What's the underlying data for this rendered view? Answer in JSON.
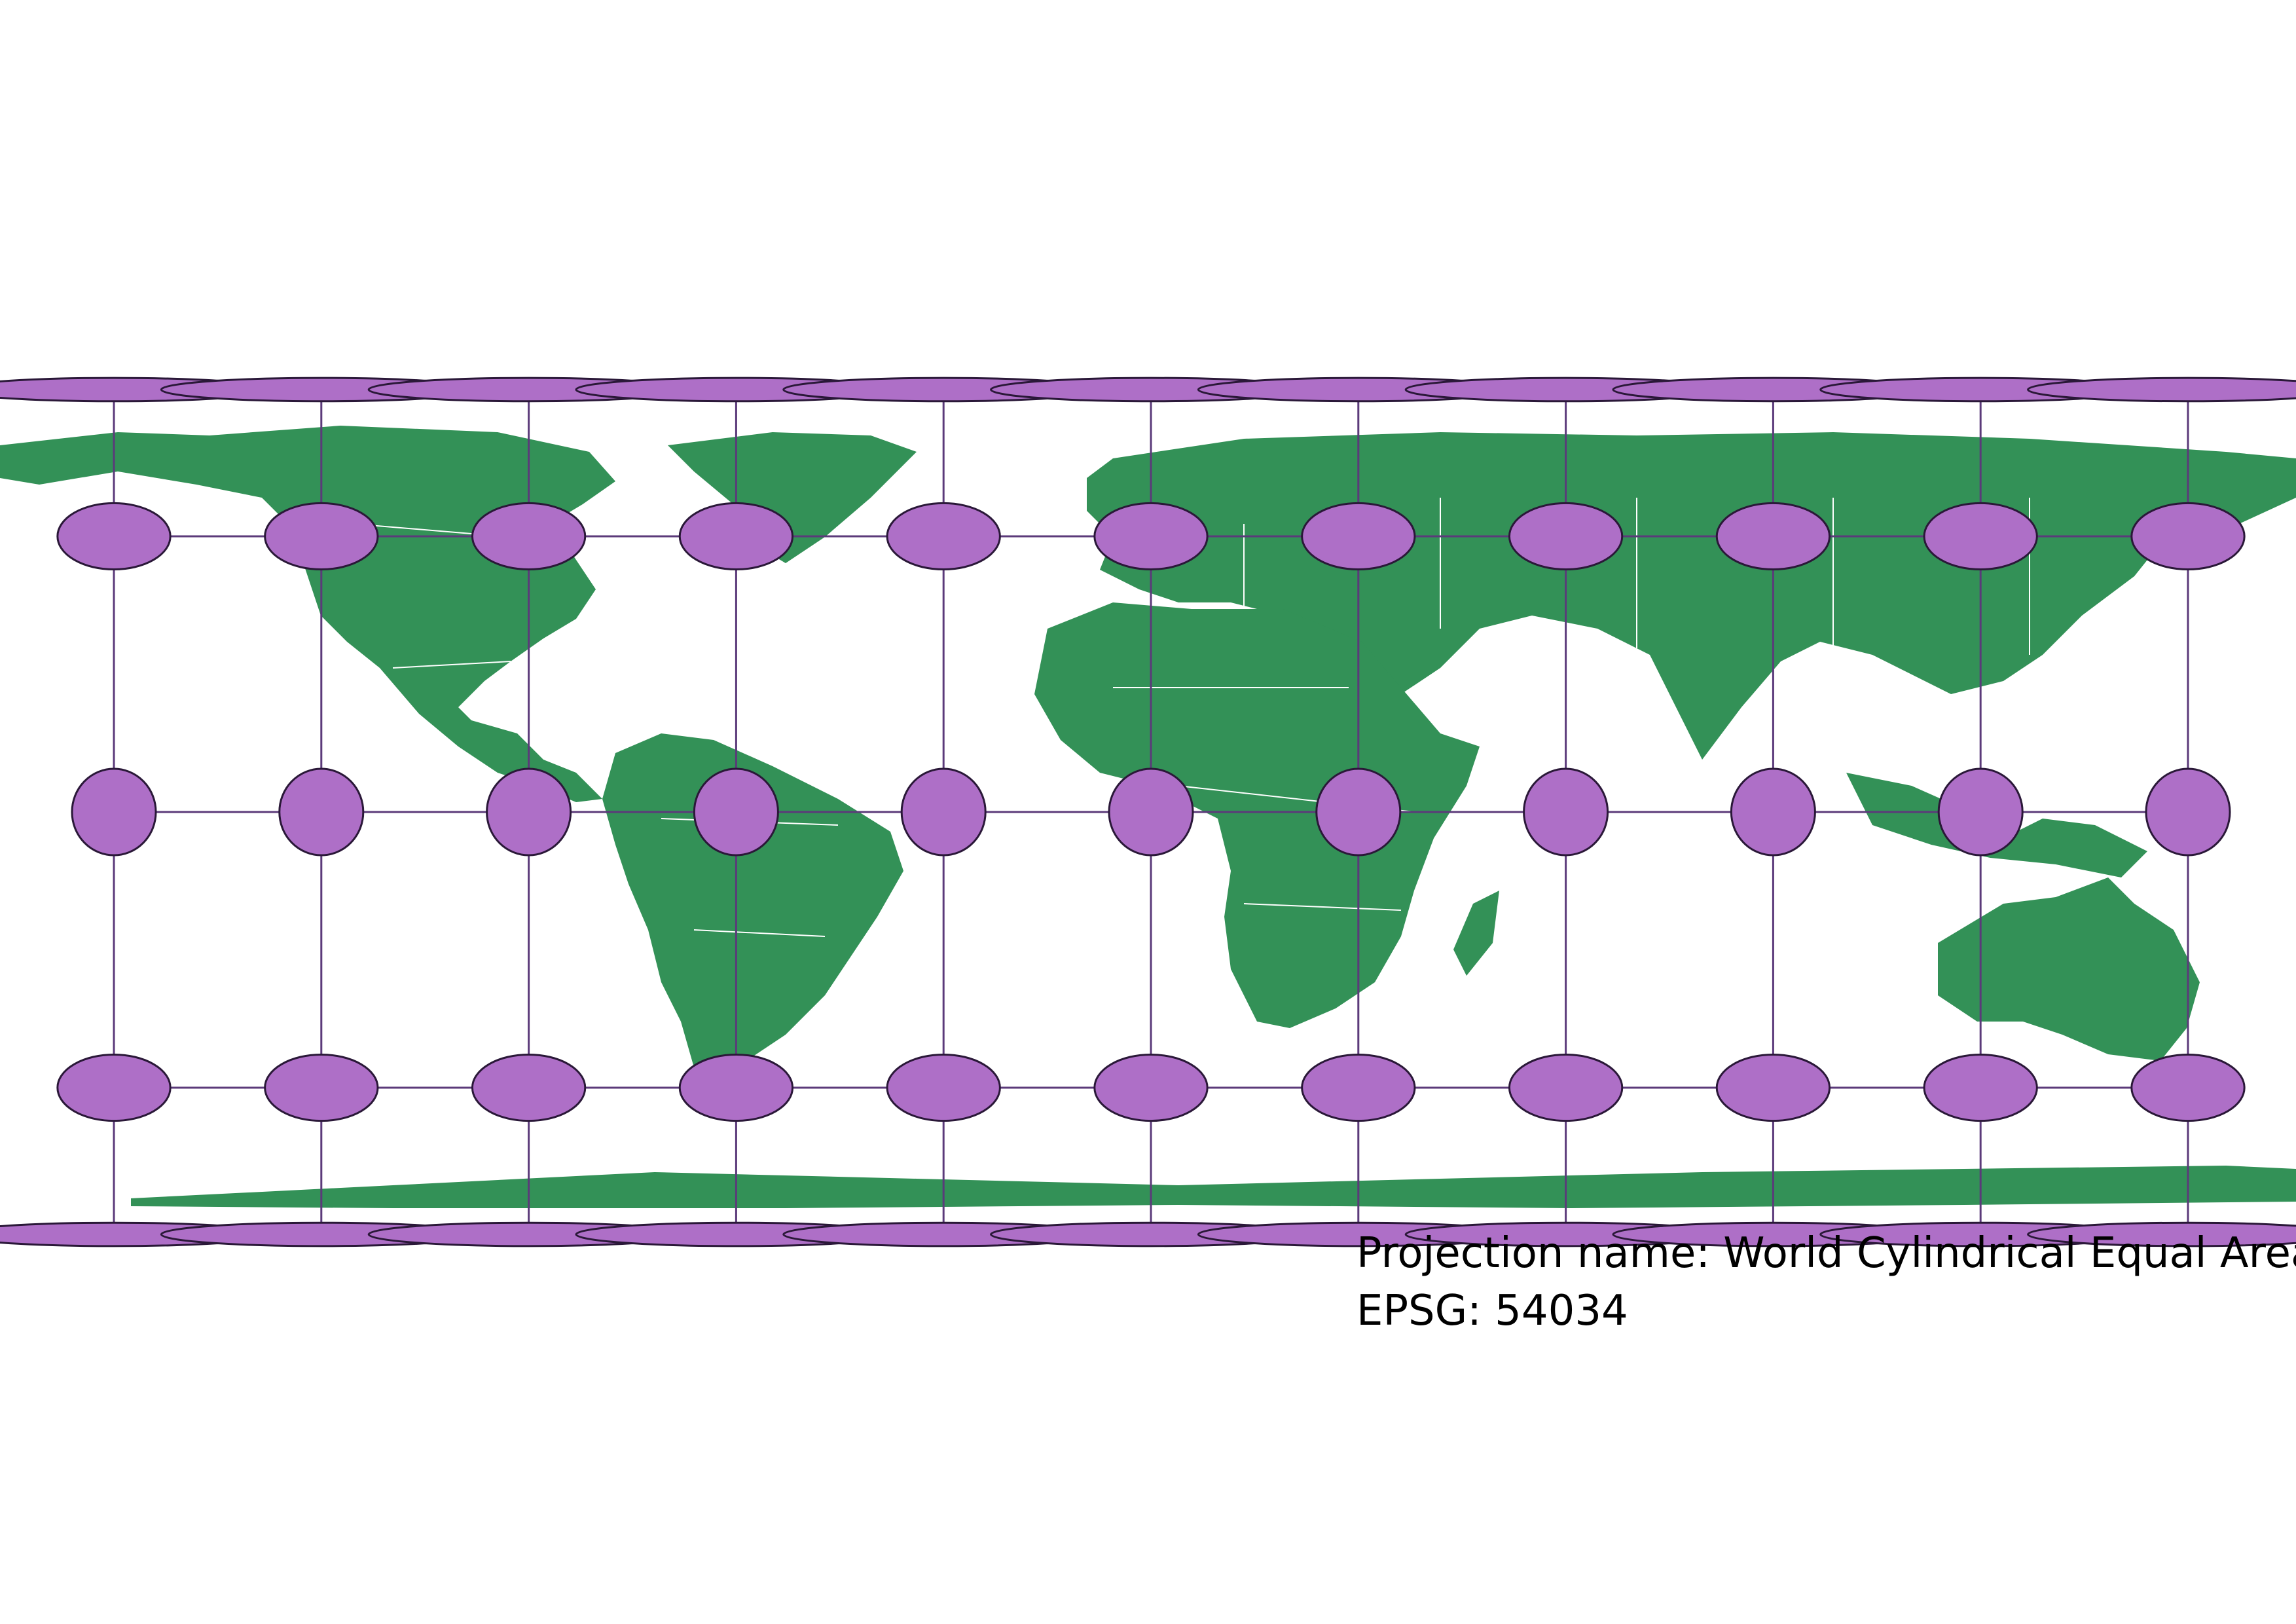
{
  "map": {
    "projection_name_label": "Projection name: World Cylindrical Equal Area",
    "epsg_label": "EPSG: 54034",
    "colors": {
      "land": "#339157",
      "border": "#ffffff",
      "indicatrix_fill": "#ae6fc7",
      "indicatrix_stroke": "#2a1838",
      "graticule": "#5b3a7a",
      "background": "#ffffff"
    },
    "graticule": {
      "longitudes": [
        -180,
        -144,
        -108,
        -72,
        -36,
        0,
        36,
        72,
        108,
        144,
        180
      ],
      "latitudes": [
        80,
        40,
        0,
        -40,
        -80
      ]
    },
    "tissot_indicatrix": {
      "description_shape": "ellipse",
      "rows_count": 5,
      "columns_count": 11
    },
    "layers": [
      "land",
      "country-borders",
      "graticule",
      "tissot-indicatrix"
    ]
  }
}
